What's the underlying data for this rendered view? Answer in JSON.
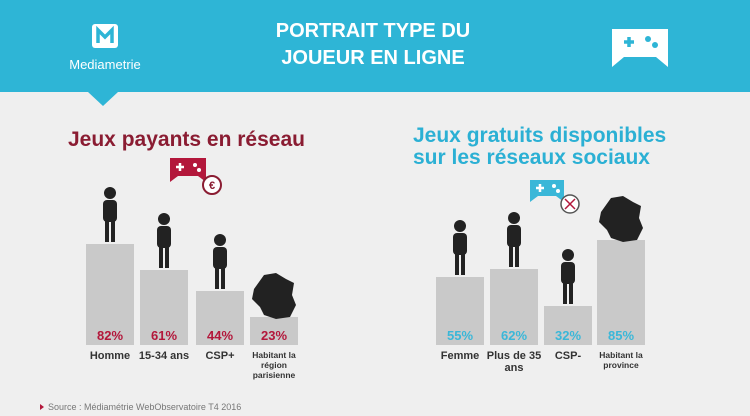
{
  "header": {
    "brand": "Mediametrie",
    "title": "PORTRAIT TYPE DU JOUEUR EN LIGNE"
  },
  "source": "Source : Médiamétrie WebObservatoire T4 2016",
  "chart_data": [
    {
      "type": "bar",
      "title": "Jeux payants en réseau",
      "title_color": "#8a1c32",
      "categories": [
        "Homme",
        "15-34 ans",
        "CSP+",
        "Habitant la région parisienne"
      ],
      "values": [
        82,
        61,
        44,
        23
      ],
      "value_labels": [
        "82%",
        "61%",
        "44%",
        "23%"
      ],
      "color": "#c9c9c9",
      "label_color": "#b3173b"
    },
    {
      "type": "bar",
      "title": "Jeux gratuits disponibles sur les réseaux sociaux",
      "title_color": "#2bb0d4",
      "categories": [
        "Femme",
        "Plus de 35 ans",
        "CSP-",
        "Habitant la province"
      ],
      "values": [
        55,
        62,
        32,
        85
      ],
      "value_labels": [
        "55%",
        "62%",
        "32%",
        "85%"
      ],
      "color": "#c9c9c9",
      "label_color": "#3ab7d8"
    }
  ]
}
